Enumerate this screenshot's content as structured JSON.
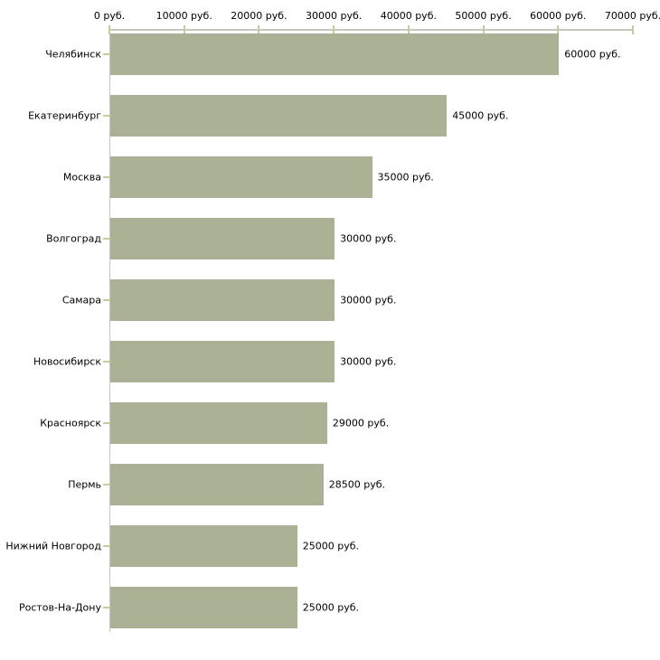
{
  "chart_data": {
    "type": "bar",
    "orientation": "horizontal",
    "title": "",
    "xlabel": "",
    "ylabel": "",
    "unit": "руб.",
    "categories": [
      "Челябинск",
      "Екатеринбург",
      "Москва",
      "Волгоград",
      "Самара",
      "Новосибирск",
      "Красноярск",
      "Пермь",
      "Нижний Новгород",
      "Ростов-На-Дону"
    ],
    "values": [
      60000,
      45000,
      35000,
      30000,
      30000,
      30000,
      29000,
      28500,
      25000,
      25000
    ],
    "value_labels": [
      "60000 руб.",
      "45000 руб.",
      "35000 руб.",
      "30000 руб.",
      "30000 руб.",
      "30000 руб.",
      "29000 руб.",
      "28500 руб.",
      "25000 руб.",
      "25000 руб."
    ],
    "xlim": [
      0,
      70000
    ],
    "x_ticks": [
      0,
      10000,
      20000,
      30000,
      40000,
      50000,
      60000,
      70000
    ],
    "x_tick_labels": [
      "0 руб.",
      "10000 руб.",
      "20000 руб.",
      "30000 руб.",
      "40000 руб.",
      "50000 руб.",
      "60000 руб.",
      "70000 руб."
    ],
    "grid": false,
    "legend": false,
    "bar_color": "#abb195",
    "axis_color": "#c6c6bd",
    "tick_color": "#c9c99b",
    "text_color": "#000000"
  }
}
